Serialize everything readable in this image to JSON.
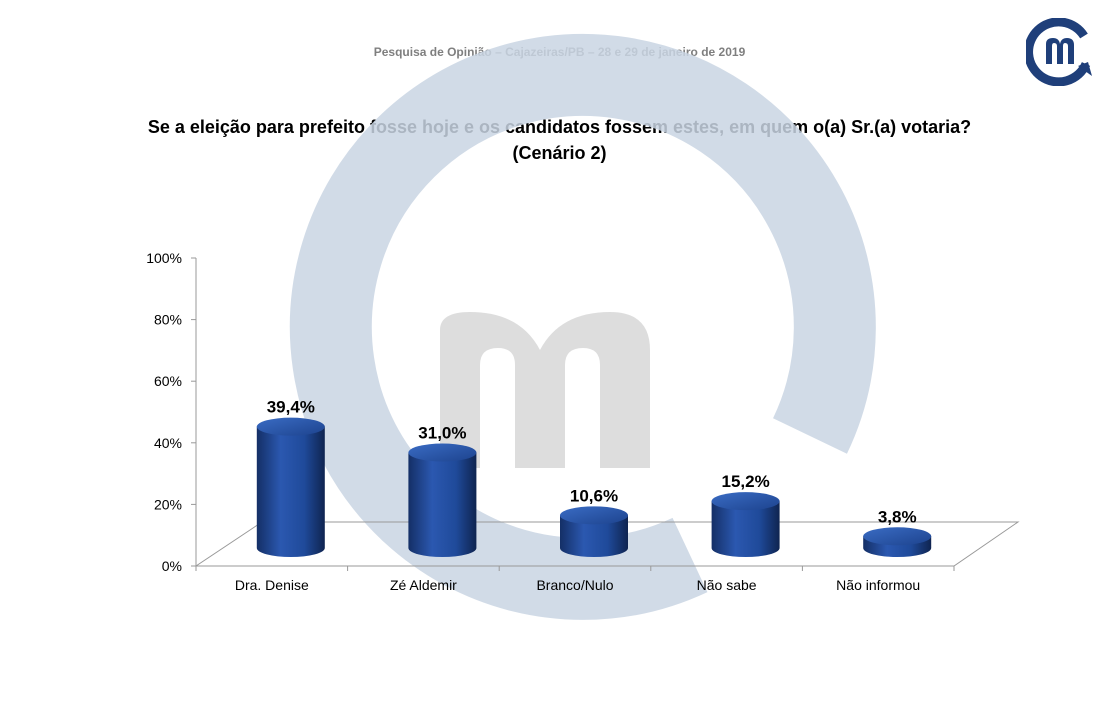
{
  "header": {
    "survey_line": "Pesquisa de Opinião – Cajazeiras/PB – 28 e 29 de janeiro de 2019",
    "logo_icon": "m-circle-logo-icon",
    "brand_color": "#1f4e79"
  },
  "question": {
    "line1": "Se a eleição para prefeito fosse hoje e os candidatos fossem estes, em quem o(a) Sr.(a) votaria?",
    "line2": "(Cenário 2)"
  },
  "chart_data": {
    "type": "bar",
    "categories": [
      "Dra. Denise",
      "Zé Aldemir",
      "Branco/Nulo",
      "Não sabe",
      "Não informou"
    ],
    "values": [
      39.4,
      31.0,
      10.6,
      15.2,
      3.8
    ],
    "data_labels": [
      "39,4%",
      "31,0%",
      "10,6%",
      "15,2%",
      "3,8%"
    ],
    "y_ticks": [
      "0%",
      "20%",
      "40%",
      "60%",
      "80%",
      "100%"
    ],
    "ylim": [
      0,
      100
    ],
    "bar_color": "#1f4e9a",
    "grid": false,
    "watermark_icon": "m-logo-watermark-icon"
  }
}
